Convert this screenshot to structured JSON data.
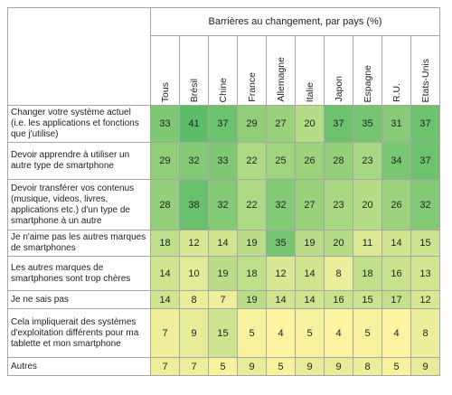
{
  "table": {
    "title": "Barrières au changement, par pays (%)",
    "columns": [
      "Tous",
      "Brésil",
      "Chine",
      "France",
      "Allemagne",
      "Italie",
      "Japon",
      "Espagne",
      "R.U.",
      "Etats-Unis"
    ],
    "rows": [
      {
        "label": "Changer votre système actuel (i.e. les applications et fonctions que j'utilise)",
        "values": [
          33,
          41,
          37,
          29,
          27,
          20,
          37,
          35,
          31,
          37
        ]
      },
      {
        "label": "Devoir apprendre à utiliser un autre type de smartphone",
        "values": [
          29,
          32,
          33,
          22,
          25,
          26,
          28,
          23,
          34,
          37
        ]
      },
      {
        "label": "Devoir transférer vos contenus (musique, videos, livres, applications etc.) d'un type de smartphone à un autre",
        "values": [
          28,
          38,
          32,
          22,
          32,
          27,
          23,
          20,
          26,
          32
        ]
      },
      {
        "label": "Je n'aime pas les autres marques de smartphones",
        "values": [
          18,
          12,
          14,
          19,
          35,
          19,
          20,
          11,
          14,
          15
        ]
      },
      {
        "label": "Les autres marques de smartphones sont trop chères",
        "values": [
          14,
          10,
          19,
          18,
          12,
          14,
          8,
          18,
          16,
          13
        ]
      },
      {
        "label": "Je ne sais pas",
        "values": [
          14,
          8,
          7,
          19,
          14,
          14,
          16,
          15,
          17,
          12
        ]
      },
      {
        "label": "Cela impliquerait des systèmes d'exploitation différents pour ma tablette et mon smartphone",
        "values": [
          7,
          9,
          15,
          5,
          4,
          5,
          4,
          5,
          4,
          8
        ]
      },
      {
        "label": "Autres",
        "values": [
          7,
          7,
          5,
          9,
          5,
          9,
          9,
          8,
          5,
          9
        ]
      }
    ]
  }
}
